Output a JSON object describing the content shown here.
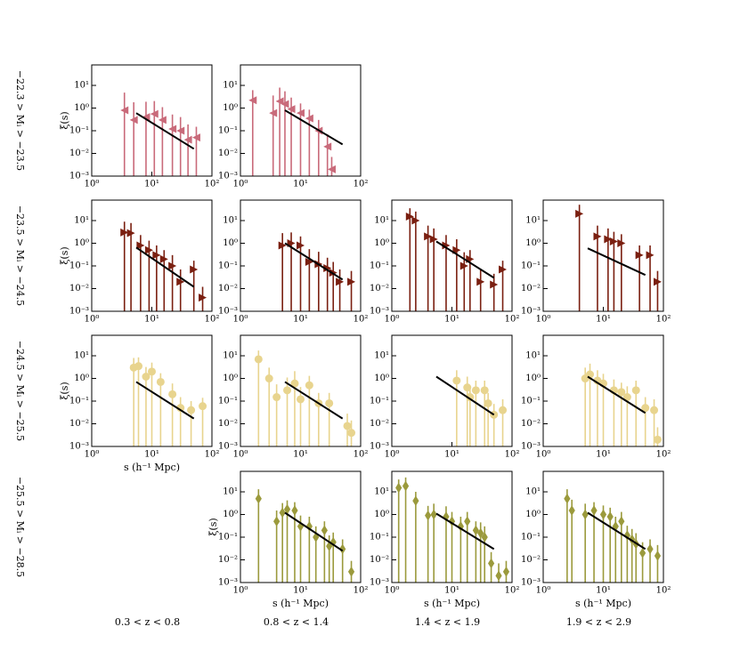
{
  "row_labels": [
    "−22.3 > Mᵢ > −23.5",
    "−23.5 > Mᵢ > −24.5",
    "−24.5 > Mᵢ > −25.5",
    "−25.5 > Mᵢ > −28.5"
  ],
  "column_labels": [
    "0.3 < z < 0.8",
    "0.8 < z < 1.4",
    "1.4 < z < 1.9",
    "1.9 < z < 2.9"
  ],
  "axes": {
    "xscale": "log",
    "yscale": "log",
    "xlim": [
      1,
      100
    ],
    "ylim": [
      0.001,
      80
    ],
    "xticks": [
      {
        "value": 1,
        "label": "10⁰"
      },
      {
        "value": 10,
        "label": "10¹"
      },
      {
        "value": 100,
        "label": "10²"
      }
    ],
    "yticks": [
      {
        "value": 0.001,
        "label": "10⁻³"
      },
      {
        "value": 0.01,
        "label": "10⁻²"
      },
      {
        "value": 0.1,
        "label": "10⁻¹"
      },
      {
        "value": 1,
        "label": "10⁰"
      },
      {
        "value": 10,
        "label": "10¹"
      }
    ]
  },
  "chart_data": [
    {
      "type": "scatter",
      "ylabel": "ξ(s)",
      "series": [
        {
          "marker": "triangle-left",
          "color": "#c96a7a",
          "x": [
            3.5,
            5,
            8,
            11,
            15,
            22,
            30,
            40,
            55
          ],
          "values": [
            0.8,
            0.3,
            0.4,
            0.55,
            0.3,
            0.12,
            0.1,
            0.04,
            0.05
          ],
          "errors": [
            4,
            1.5,
            1.5,
            1.5,
            0.8,
            0.4,
            0.3,
            0.15,
            0.1
          ]
        }
      ],
      "fit": {
        "color": "#000000",
        "x": [
          5.5,
          50
        ],
        "values": [
          0.6,
          0.016
        ]
      }
    },
    {
      "type": "scatter",
      "series": [
        {
          "marker": "triangle-left",
          "color": "#c96a7a",
          "x": [
            1.6,
            3.5,
            4.5,
            5.5,
            7,
            10,
            14,
            20,
            28,
            33
          ],
          "values": [
            2.2,
            0.6,
            2,
            1.5,
            0.9,
            0.6,
            0.35,
            0.1,
            0.02,
            0.002
          ],
          "errors": [
            4,
            3,
            6,
            4,
            2,
            1,
            0.5,
            0.2,
            0.05,
            0.005
          ]
        }
      ],
      "fit": {
        "color": "#000000",
        "x": [
          5.5,
          50
        ],
        "values": [
          0.8,
          0.025
        ]
      }
    },
    {
      "type": "scatter",
      "ylabel": "ξ(s)",
      "series": [
        {
          "marker": "triangle-right",
          "color": "#7a1f10",
          "x": [
            3.5,
            4.5,
            6.5,
            9,
            12,
            16,
            22,
            30,
            50,
            70
          ],
          "values": [
            3,
            2.8,
            0.8,
            0.5,
            0.3,
            0.2,
            0.1,
            0.02,
            0.07,
            0.004
          ],
          "errors": [
            6,
            5,
            1.5,
            0.8,
            0.5,
            0.3,
            0.2,
            0.05,
            0.1,
            0.008
          ]
        }
      ],
      "fit": {
        "color": "#000000",
        "x": [
          5.5,
          50
        ],
        "values": [
          0.65,
          0.012
        ]
      }
    },
    {
      "type": "scatter",
      "series": [
        {
          "marker": "triangle-right",
          "color": "#7a1f10",
          "x": [
            5,
            7,
            10,
            14,
            20,
            28,
            35,
            45,
            70
          ],
          "values": [
            0.8,
            1,
            0.8,
            0.15,
            0.12,
            0.08,
            0.05,
            0.02,
            0.02
          ],
          "errors": [
            2,
            2,
            1.2,
            0.4,
            0.3,
            0.15,
            0.1,
            0.05,
            0.04
          ]
        }
      ],
      "fit": {
        "color": "#000000",
        "x": [
          5.5,
          50
        ],
        "values": [
          1.0,
          0.025
        ]
      }
    },
    {
      "type": "scatter",
      "series": [
        {
          "marker": "triangle-right",
          "color": "#7a1f10",
          "x": [
            2,
            2.5,
            4,
            5,
            8,
            12,
            16,
            20,
            30,
            50,
            70
          ],
          "values": [
            15,
            10,
            2,
            1.5,
            0.8,
            0.5,
            0.1,
            0.2,
            0.02,
            0.015,
            0.07
          ],
          "errors": [
            20,
            15,
            4,
            3,
            1.5,
            1,
            0.3,
            0.3,
            0.05,
            0.03,
            0.1
          ]
        }
      ],
      "fit": {
        "color": "#000000",
        "x": [
          5.5,
          50
        ],
        "values": [
          1.2,
          0.03
        ]
      }
    },
    {
      "type": "scatter",
      "series": [
        {
          "marker": "triangle-right",
          "color": "#7a1f10",
          "x": [
            4,
            8,
            12,
            15,
            20,
            40,
            60,
            80
          ],
          "values": [
            20,
            2,
            1.5,
            1.2,
            1,
            0.3,
            0.3,
            0.02
          ],
          "errors": [
            30,
            4,
            3,
            2,
            1.5,
            0.5,
            0.5,
            0.04
          ]
        }
      ],
      "fit": {
        "color": "#000000",
        "x": [
          5.5,
          50
        ],
        "values": [
          0.6,
          0.04
        ]
      }
    },
    {
      "type": "scatter",
      "ylabel": "ξ(s)",
      "xlabel": "s (h⁻¹ Mpc)",
      "series": [
        {
          "marker": "circle",
          "color": "#e8d48e",
          "x": [
            5,
            6,
            8,
            10,
            14,
            22,
            30,
            45,
            70
          ],
          "values": [
            3,
            3.5,
            1.2,
            2,
            0.7,
            0.2,
            0.05,
            0.04,
            0.06
          ],
          "errors": [
            5,
            5,
            2,
            3,
            1,
            0.4,
            0.1,
            0.06,
            0.08
          ]
        }
      ],
      "fit": {
        "color": "#000000",
        "x": [
          5.5,
          50
        ],
        "values": [
          0.7,
          0.017
        ]
      }
    },
    {
      "type": "scatter",
      "series": [
        {
          "marker": "circle",
          "color": "#e8d48e",
          "x": [
            2,
            3,
            4,
            6,
            8,
            10,
            14,
            20,
            30,
            60,
            70
          ],
          "values": [
            7,
            1,
            0.15,
            0.3,
            0.6,
            0.12,
            0.5,
            0.08,
            0.08,
            0.008,
            0.004
          ],
          "errors": [
            10,
            2,
            0.4,
            0.8,
            1.5,
            0.3,
            0.8,
            0.15,
            0.15,
            0.02,
            0.01
          ]
        }
      ],
      "fit": {
        "color": "#000000",
        "x": [
          5.5,
          50
        ],
        "values": [
          0.7,
          0.017
        ]
      }
    },
    {
      "type": "scatter",
      "series": [
        {
          "marker": "circle",
          "color": "#e8d48e",
          "x": [
            12,
            18,
            20,
            25,
            35,
            40,
            50,
            70
          ],
          "values": [
            0.8,
            0.4,
            0.15,
            0.3,
            0.3,
            0.08,
            0.025,
            0.04
          ],
          "errors": [
            1.5,
            0.8,
            0.3,
            0.5,
            0.5,
            0.15,
            0.05,
            0.08
          ]
        }
      ],
      "fit": {
        "color": "#000000",
        "x": [
          5.5,
          50
        ],
        "values": [
          1.2,
          0.025
        ]
      }
    },
    {
      "type": "scatter",
      "series": [
        {
          "marker": "circle",
          "color": "#e8d48e",
          "x": [
            5,
            6,
            8,
            10,
            15,
            20,
            25,
            35,
            50,
            70,
            80
          ],
          "values": [
            1,
            1.5,
            0.8,
            0.6,
            0.3,
            0.25,
            0.15,
            0.3,
            0.05,
            0.04,
            0.002
          ],
          "errors": [
            2,
            3,
            1.5,
            1,
            0.6,
            0.4,
            0.3,
            0.5,
            0.1,
            0.08,
            0.005
          ]
        }
      ],
      "fit": {
        "color": "#000000",
        "x": [
          5.5,
          50
        ],
        "values": [
          1.2,
          0.03
        ]
      }
    },
    {
      "type": "scatter",
      "ylabel": "ξ(s)",
      "xlabel": "s (h⁻¹ Mpc)",
      "series": [
        {
          "marker": "diamond",
          "color": "#9b9a3c",
          "x": [
            2,
            4,
            5,
            6,
            8,
            10,
            14,
            18,
            25,
            30,
            35,
            50,
            70
          ],
          "values": [
            5,
            0.5,
            1.2,
            1.7,
            1.5,
            0.3,
            0.3,
            0.1,
            0.2,
            0.04,
            0.06,
            0.03,
            0.003
          ],
          "errors": [
            8,
            1,
            2,
            2.5,
            2,
            0.6,
            0.5,
            0.2,
            0.3,
            0.08,
            0.1,
            0.05,
            0.006
          ]
        }
      ],
      "fit": {
        "color": "#000000",
        "x": [
          5.5,
          50
        ],
        "values": [
          1.2,
          0.025
        ]
      }
    },
    {
      "type": "scatter",
      "xlabel": "s (h⁻¹ Mpc)",
      "series": [
        {
          "marker": "diamond",
          "color": "#9b9a3c",
          "x": [
            1.3,
            1.7,
            2.5,
            4,
            5,
            8,
            10,
            14,
            18,
            25,
            30,
            35,
            45,
            60,
            80
          ],
          "values": [
            15,
            18,
            4,
            0.9,
            1,
            0.8,
            0.5,
            0.3,
            0.5,
            0.2,
            0.15,
            0.1,
            0.007,
            0.002,
            0.003
          ],
          "errors": [
            20,
            25,
            6,
            1.5,
            2,
            1.5,
            0.8,
            0.5,
            0.8,
            0.3,
            0.3,
            0.2,
            0.015,
            0.005,
            0.006
          ]
        }
      ],
      "fit": {
        "color": "#000000",
        "x": [
          5.5,
          50
        ],
        "values": [
          1.1,
          0.03
        ]
      }
    },
    {
      "type": "scatter",
      "xlabel": "s (h⁻¹ Mpc)",
      "series": [
        {
          "marker": "diamond",
          "color": "#9b9a3c",
          "x": [
            2.5,
            3,
            5,
            7,
            10,
            13,
            16,
            20,
            25,
            30,
            35,
            45,
            60,
            80
          ],
          "values": [
            5,
            1.5,
            1,
            1.5,
            1,
            0.8,
            0.3,
            0.5,
            0.12,
            0.08,
            0.05,
            0.02,
            0.03,
            0.015
          ],
          "errors": [
            8,
            3,
            2,
            2,
            1.5,
            1.2,
            0.5,
            0.8,
            0.2,
            0.15,
            0.1,
            0.04,
            0.05,
            0.03
          ]
        }
      ],
      "fit": {
        "color": "#000000",
        "x": [
          5.5,
          50
        ],
        "values": [
          1.2,
          0.03
        ]
      }
    }
  ]
}
